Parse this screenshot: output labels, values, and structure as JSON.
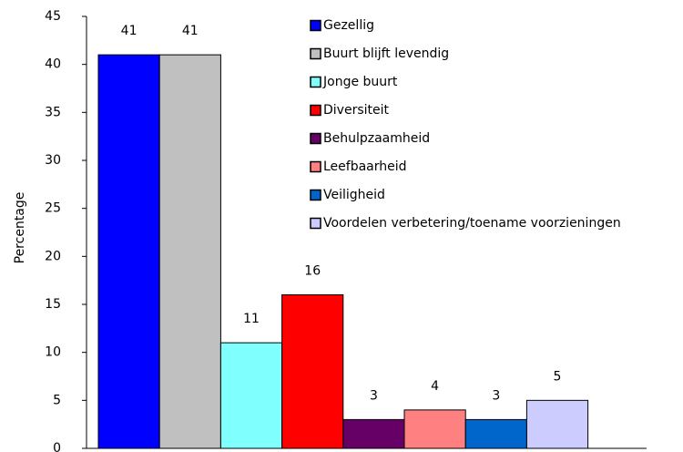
{
  "chart_data": {
    "type": "bar",
    "y_label": "Percentage",
    "series": [
      {
        "name": "Gezellig",
        "color": "#0000ff",
        "values": [
          41
        ]
      },
      {
        "name": "Buurt blijft levendig",
        "color": "#c0c0c0",
        "values": [
          41
        ]
      },
      {
        "name": "Jonge buurt",
        "color": "#80ffff",
        "values": [
          11
        ]
      },
      {
        "name": "Diversiteit",
        "color": "#ff0000",
        "values": [
          16
        ]
      },
      {
        "name": "Behulpzaamheid",
        "color": "#660066",
        "values": [
          3
        ]
      },
      {
        "name": "Leefbaarheid",
        "color": "#ff8080",
        "values": [
          4
        ]
      },
      {
        "name": "Veiligheid",
        "color": "#0066cc",
        "values": [
          3
        ]
      },
      {
        "name": "Voordelen verbetering/toename voorzieningen",
        "color": "#ccccff",
        "values": [
          5
        ]
      }
    ],
    "ylim": [
      0,
      45
    ],
    "yticks": [
      0,
      5,
      10,
      15,
      20,
      25,
      30,
      35,
      40,
      45
    ],
    "legend": "top-right"
  }
}
